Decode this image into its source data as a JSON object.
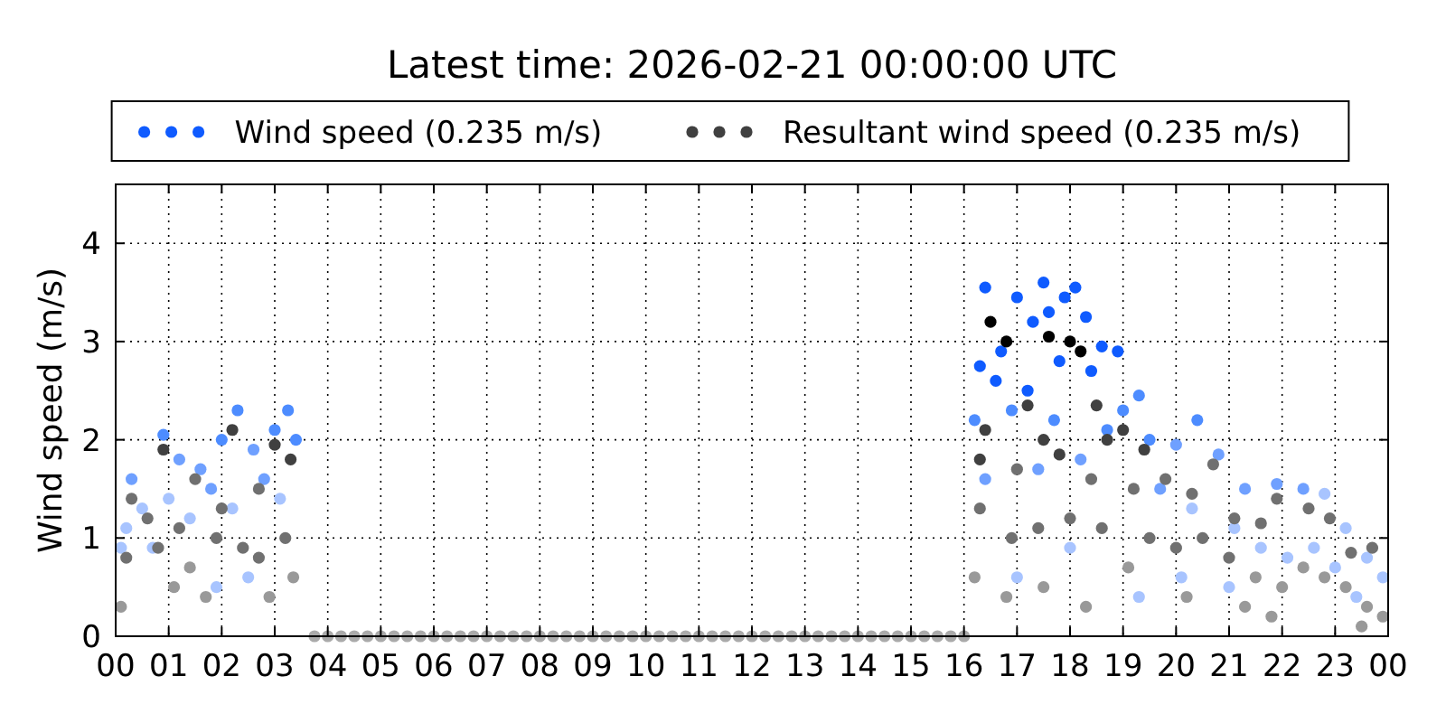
{
  "chart_data": {
    "type": "scatter",
    "title": "Latest time: 2026-02-21 00:00:00 UTC",
    "ylabel": "Wind speed (m/s)",
    "xlim": [
      0,
      24
    ],
    "xticks": [
      {
        "value": 0,
        "label": "00"
      },
      {
        "value": 1,
        "label": "01"
      },
      {
        "value": 2,
        "label": "02"
      },
      {
        "value": 3,
        "label": "03"
      },
      {
        "value": 4,
        "label": "04"
      },
      {
        "value": 5,
        "label": "05"
      },
      {
        "value": 6,
        "label": "06"
      },
      {
        "value": 7,
        "label": "07"
      },
      {
        "value": 8,
        "label": "08"
      },
      {
        "value": 9,
        "label": "09"
      },
      {
        "value": 10,
        "label": "10"
      },
      {
        "value": 11,
        "label": "11"
      },
      {
        "value": 12,
        "label": "12"
      },
      {
        "value": 13,
        "label": "13"
      },
      {
        "value": 14,
        "label": "14"
      },
      {
        "value": 15,
        "label": "15"
      },
      {
        "value": 16,
        "label": "16"
      },
      {
        "value": 17,
        "label": "17"
      },
      {
        "value": 18,
        "label": "18"
      },
      {
        "value": 19,
        "label": "19"
      },
      {
        "value": 20,
        "label": "20"
      },
      {
        "value": 21,
        "label": "21"
      },
      {
        "value": 22,
        "label": "22"
      },
      {
        "value": 23,
        "label": "23"
      },
      {
        "value": 24,
        "label": "00"
      }
    ],
    "ylim": [
      0,
      4.6
    ],
    "yticks": [
      0,
      1,
      2,
      3,
      4
    ],
    "grid": true,
    "legend": "top",
    "marker": "circle",
    "series": [
      {
        "name": "Wind speed (0.235 m/s)",
        "color": "#0f5bff",
        "x": [
          0.9,
          2.3,
          3.25,
          2.0,
          1.2,
          0.3,
          1.6,
          2.6,
          3.0,
          3.4,
          0.5,
          1.0,
          1.8,
          2.8,
          0.2,
          1.4,
          2.2,
          3.1,
          0.7,
          2.5,
          1.9,
          0.1,
          16.4,
          16.7,
          17.0,
          17.3,
          17.5,
          17.6,
          17.9,
          18.1,
          18.3,
          18.6,
          18.9,
          19.3,
          16.3,
          16.6,
          17.2,
          17.8,
          18.4,
          19.0,
          16.2,
          16.9,
          17.7,
          18.7,
          19.5,
          20.0,
          20.4,
          20.8,
          21.3,
          21.9,
          22.4,
          22.8,
          23.2,
          23.6,
          23.9,
          16.4,
          17.4,
          18.2,
          19.7,
          20.3,
          21.1,
          21.6,
          22.1,
          22.6,
          23.0,
          23.4,
          17.0,
          18.0,
          19.3,
          20.1,
          21.0
        ],
        "values": [
          2.05,
          2.3,
          2.3,
          2.0,
          1.8,
          1.6,
          1.7,
          1.9,
          2.1,
          2.0,
          1.3,
          1.4,
          1.5,
          1.6,
          1.1,
          1.2,
          1.3,
          1.4,
          0.9,
          0.6,
          0.5,
          0.9,
          3.55,
          2.9,
          3.45,
          3.2,
          3.6,
          3.3,
          3.45,
          3.55,
          3.25,
          2.95,
          2.9,
          2.45,
          2.75,
          2.6,
          2.5,
          2.8,
          2.7,
          2.3,
          2.2,
          2.3,
          2.2,
          2.1,
          2.0,
          1.95,
          2.2,
          1.85,
          1.5,
          1.55,
          1.5,
          1.45,
          1.1,
          0.8,
          0.6,
          1.6,
          1.7,
          1.8,
          1.5,
          1.3,
          1.1,
          0.9,
          0.8,
          0.9,
          0.7,
          0.4,
          0.6,
          0.9,
          0.4,
          0.6,
          0.5
        ],
        "colors": [
          "#4d8cff",
          "#4d8cff",
          "#4d8cff",
          "#4d8cff",
          "#6fa0ff",
          "#6fa0ff",
          "#6fa0ff",
          "#6fa0ff",
          "#4d8cff",
          "#4d8cff",
          "#a8c4ff",
          "#a8c4ff",
          "#6fa0ff",
          "#6fa0ff",
          "#a8c4ff",
          "#a8c4ff",
          "#a8c4ff",
          "#a8c4ff",
          "#a8c4ff",
          "#a8c4ff",
          "#a8c4ff",
          "#a8c4ff",
          "#0f5bff",
          "#0f5bff",
          "#0f5bff",
          "#0f5bff",
          "#0f5bff",
          "#0f5bff",
          "#0f5bff",
          "#0f5bff",
          "#0f5bff",
          "#0f5bff",
          "#0f5bff",
          "#4d8cff",
          "#0f5bff",
          "#0f5bff",
          "#0f5bff",
          "#0f5bff",
          "#0f5bff",
          "#4d8cff",
          "#4d8cff",
          "#4d8cff",
          "#4d8cff",
          "#4d8cff",
          "#4d8cff",
          "#6fa0ff",
          "#4d8cff",
          "#6fa0ff",
          "#6fa0ff",
          "#6fa0ff",
          "#6fa0ff",
          "#a8c4ff",
          "#a8c4ff",
          "#a8c4ff",
          "#a8c4ff",
          "#6fa0ff",
          "#6fa0ff",
          "#6fa0ff",
          "#6fa0ff",
          "#a8c4ff",
          "#a8c4ff",
          "#a8c4ff",
          "#a8c4ff",
          "#a8c4ff",
          "#a8c4ff",
          "#a8c4ff",
          "#a8c4ff",
          "#a8c4ff",
          "#a8c4ff",
          "#a8c4ff",
          "#a8c4ff"
        ]
      },
      {
        "name": "Resultant wind speed (0.235 m/s)",
        "color": "#404040",
        "x": [
          0.9,
          0.3,
          1.5,
          2.2,
          3.0,
          3.3,
          0.6,
          1.2,
          2.0,
          2.7,
          0.2,
          0.8,
          1.4,
          2.4,
          3.2,
          0.1,
          1.1,
          1.7,
          2.9,
          3.35,
          2.7,
          1.9,
          3.75,
          4.0,
          4.25,
          4.5,
          4.75,
          5.0,
          5.25,
          5.5,
          5.75,
          6.0,
          6.25,
          6.5,
          6.75,
          7.0,
          7.25,
          7.5,
          7.75,
          8.0,
          8.25,
          8.5,
          8.75,
          9.0,
          9.25,
          9.5,
          9.75,
          10.0,
          10.25,
          10.5,
          10.75,
          11.0,
          11.25,
          11.5,
          11.75,
          12.0,
          12.25,
          12.5,
          12.75,
          13.0,
          13.25,
          13.5,
          13.75,
          14.0,
          14.25,
          14.5,
          14.75,
          15.0,
          15.25,
          15.5,
          15.75,
          16.0,
          16.5,
          16.8,
          17.6,
          18.0,
          18.2,
          18.5,
          17.2,
          16.4,
          17.5,
          18.7,
          19.0,
          19.4,
          16.3,
          17.0,
          17.8,
          18.4,
          19.2,
          19.8,
          20.3,
          20.7,
          21.1,
          21.6,
          21.9,
          22.5,
          22.9,
          23.3,
          23.7,
          16.3,
          16.9,
          17.4,
          18.0,
          18.6,
          19.5,
          20.0,
          20.5,
          21.0,
          21.5,
          22.0,
          22.4,
          22.8,
          23.2,
          23.6,
          23.9,
          16.2,
          16.8,
          17.5,
          18.3,
          19.1,
          20.2,
          21.3,
          21.8,
          23.5
        ],
        "values": [
          1.9,
          1.4,
          1.6,
          2.1,
          1.95,
          1.8,
          1.2,
          1.1,
          1.3,
          1.5,
          0.8,
          0.9,
          0.7,
          0.9,
          1.0,
          0.3,
          0.5,
          0.4,
          0.4,
          0.6,
          0.8,
          1.0,
          0,
          0,
          0,
          0,
          0,
          0,
          0,
          0,
          0,
          0,
          0,
          0,
          0,
          0,
          0,
          0,
          0,
          0,
          0,
          0,
          0,
          0,
          0,
          0,
          0,
          0,
          0,
          0,
          0,
          0,
          0,
          0,
          0,
          0,
          0,
          0,
          0,
          0,
          0,
          0,
          0,
          0,
          0,
          0,
          0,
          0,
          0,
          0,
          0,
          0,
          3.2,
          3.0,
          3.05,
          3.0,
          2.9,
          2.35,
          2.35,
          2.1,
          2.0,
          2.0,
          2.1,
          1.9,
          1.8,
          1.7,
          1.85,
          1.6,
          1.5,
          1.6,
          1.45,
          1.75,
          1.2,
          1.15,
          1.4,
          1.3,
          1.2,
          0.85,
          0.9,
          1.3,
          1.0,
          1.1,
          1.2,
          1.1,
          1.0,
          0.9,
          1.0,
          0.8,
          0.6,
          0.5,
          0.7,
          0.6,
          0.5,
          0.3,
          0.2,
          0.6,
          0.4,
          0.5,
          0.3,
          0.7,
          0.4,
          0.3,
          0.2,
          0.1
        ],
        "colors": [
          "#404040",
          "#707070",
          "#707070",
          "#404040",
          "#404040",
          "#404040",
          "#707070",
          "#707070",
          "#707070",
          "#707070",
          "#707070",
          "#707070",
          "#999999",
          "#707070",
          "#707070",
          "#999999",
          "#999999",
          "#999999",
          "#999999",
          "#999999",
          "#707070",
          "#707070",
          "#aaaaaa",
          "#aaaaaa",
          "#aaaaaa",
          "#aaaaaa",
          "#aaaaaa",
          "#aaaaaa",
          "#aaaaaa",
          "#aaaaaa",
          "#aaaaaa",
          "#aaaaaa",
          "#aaaaaa",
          "#aaaaaa",
          "#aaaaaa",
          "#aaaaaa",
          "#aaaaaa",
          "#aaaaaa",
          "#aaaaaa",
          "#aaaaaa",
          "#aaaaaa",
          "#aaaaaa",
          "#aaaaaa",
          "#aaaaaa",
          "#aaaaaa",
          "#aaaaaa",
          "#aaaaaa",
          "#aaaaaa",
          "#aaaaaa",
          "#aaaaaa",
          "#aaaaaa",
          "#aaaaaa",
          "#aaaaaa",
          "#aaaaaa",
          "#aaaaaa",
          "#aaaaaa",
          "#aaaaaa",
          "#aaaaaa",
          "#aaaaaa",
          "#aaaaaa",
          "#aaaaaa",
          "#aaaaaa",
          "#aaaaaa",
          "#aaaaaa",
          "#aaaaaa",
          "#aaaaaa",
          "#aaaaaa",
          "#aaaaaa",
          "#aaaaaa",
          "#aaaaaa",
          "#aaaaaa",
          "#aaaaaa",
          "#000000",
          "#000000",
          "#000000",
          "#000000",
          "#000000",
          "#404040",
          "#404040",
          "#404040",
          "#404040",
          "#404040",
          "#404040",
          "#404040",
          "#404040",
          "#707070",
          "#404040",
          "#707070",
          "#707070",
          "#707070",
          "#707070",
          "#707070",
          "#707070",
          "#707070",
          "#707070",
          "#707070",
          "#707070",
          "#707070",
          "#707070",
          "#707070",
          "#707070",
          "#707070",
          "#707070",
          "#707070",
          "#707070",
          "#707070",
          "#707070",
          "#707070",
          "#999999",
          "#999999",
          "#999999",
          "#999999",
          "#999999",
          "#999999",
          "#999999",
          "#999999",
          "#999999",
          "#999999",
          "#999999",
          "#999999",
          "#999999",
          "#999999",
          "#999999",
          "#999999"
        ]
      }
    ]
  }
}
